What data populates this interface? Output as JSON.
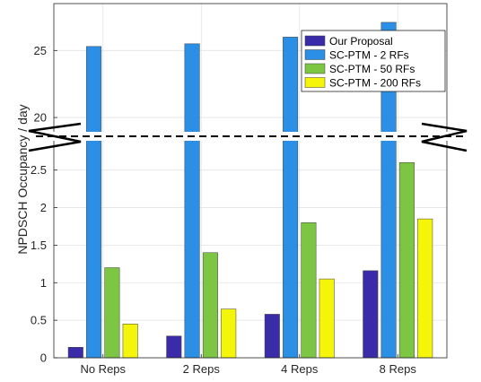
{
  "chart_data": {
    "type": "bar",
    "title": "",
    "xlabel": "",
    "ylabel": "NPDSCH Occupancy / day",
    "categories": [
      "No Reps",
      "2 Reps",
      "4 Reps",
      "8 Reps"
    ],
    "series": [
      {
        "name": "Our Proposal",
        "color": "#3a2ca8",
        "values": [
          0.14,
          0.29,
          0.58,
          1.16
        ]
      },
      {
        "name": "SC-PTM - 2 RFs",
        "color": "#2b8fe6",
        "values": [
          25.3,
          25.5,
          26.0,
          27.1
        ]
      },
      {
        "name": "SC-PTM - 50 RFs",
        "color": "#7cc644",
        "values": [
          1.2,
          1.4,
          1.8,
          2.6
        ]
      },
      {
        "name": "SC-PTM - 200 RFs",
        "color": "#f5f50a",
        "values": [
          0.45,
          0.65,
          1.05,
          1.85
        ]
      }
    ],
    "broken_axis": true,
    "lower_ylim": [
      0,
      2.95
    ],
    "upper_ylim": [
      18.6,
      28.5
    ],
    "lower_ticks": [
      "0",
      "0.5",
      "1",
      "1.5",
      "2",
      "2.5"
    ],
    "upper_ticks": [
      "20",
      "25"
    ],
    "grid": true,
    "legend_position": "top-right"
  }
}
